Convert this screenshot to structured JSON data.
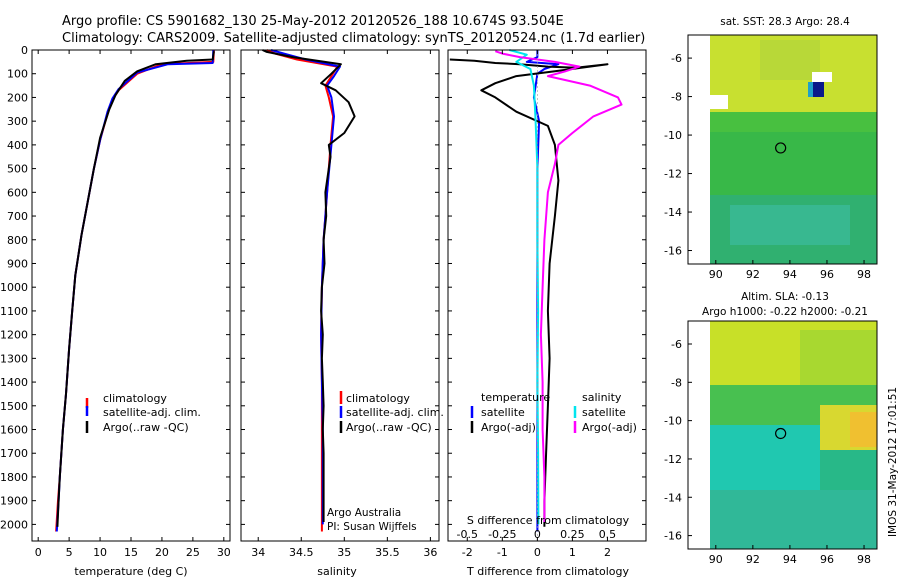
{
  "header": {
    "line1": "Argo profile: CS 5901682_130 25-May-2012 20120526_188 10.674S 93.504E",
    "line2": "Climatology: CARS2009. Satellite-adjusted climatology: synTS_20120524.nc (1.7d earlier)"
  },
  "colors": {
    "climatology": "#ff0000",
    "satellite": "#0000ff",
    "argo": "#000000",
    "sal_satellite": "#00e5ee",
    "sal_argo": "#ff00ff"
  },
  "chart_data": [
    {
      "type": "line",
      "id": "temperature",
      "xlabel": "temperature (deg C)",
      "ylabel": "",
      "xlim": [
        -1,
        31
      ],
      "ylim": [
        2070,
        0
      ],
      "xticks": [
        0,
        5,
        10,
        15,
        20,
        25,
        30
      ],
      "yticks": [
        0,
        100,
        200,
        300,
        400,
        500,
        600,
        700,
        800,
        900,
        1000,
        1100,
        1200,
        1300,
        1400,
        1500,
        1600,
        1700,
        1800,
        1900,
        2000
      ],
      "legend": [
        "climatology",
        "satellite-adj. clim.",
        "Argo(..raw -QC)"
      ],
      "legend_position": "bottom-center",
      "series": [
        {
          "name": "climatology",
          "color": "#ff0000",
          "points": [
            [
              28.4,
              0
            ],
            [
              28.3,
              50
            ],
            [
              20,
              60
            ],
            [
              16,
              100
            ],
            [
              13,
              170
            ],
            [
              12,
              210
            ],
            [
              11.3,
              260
            ],
            [
              10,
              380
            ],
            [
              9,
              500
            ],
            [
              8,
              640
            ],
            [
              7,
              780
            ],
            [
              6,
              950
            ],
            [
              5.5,
              1100
            ],
            [
              5,
              1260
            ],
            [
              4.5,
              1450
            ],
            [
              4,
              1600
            ],
            [
              3.5,
              1800
            ],
            [
              3.2,
              1900
            ],
            [
              2.9,
              2030
            ]
          ]
        },
        {
          "name": "satellite-adj. clim.",
          "color": "#0000ff",
          "points": [
            [
              28.3,
              0
            ],
            [
              28.2,
              55
            ],
            [
              21,
              60
            ],
            [
              16,
              95
            ],
            [
              13,
              165
            ],
            [
              12,
              205
            ],
            [
              11.2,
              260
            ],
            [
              10,
              380
            ],
            [
              9,
              500
            ],
            [
              8,
              640
            ],
            [
              7,
              780
            ],
            [
              6,
              950
            ],
            [
              5.5,
              1100
            ],
            [
              5,
              1260
            ],
            [
              4.5,
              1450
            ],
            [
              4,
              1600
            ],
            [
              3.5,
              1800
            ],
            [
              3.3,
              1900
            ],
            [
              3,
              2030
            ]
          ]
        },
        {
          "name": "Argo(..raw -QC)",
          "color": "#000000",
          "points": [
            [
              28.4,
              5
            ],
            [
              28.2,
              40
            ],
            [
              24,
              45
            ],
            [
              19,
              60
            ],
            [
              16,
              90
            ],
            [
              14,
              130
            ],
            [
              12.5,
              190
            ],
            [
              11.5,
              250
            ],
            [
              10,
              370
            ],
            [
              9,
              500
            ],
            [
              8,
              640
            ],
            [
              7,
              780
            ],
            [
              6,
              950
            ],
            [
              5.5,
              1100
            ],
            [
              5,
              1260
            ],
            [
              4.5,
              1450
            ],
            [
              4,
              1600
            ],
            [
              3.5,
              1800
            ],
            [
              3.3,
              1900
            ],
            [
              3.1,
              2010
            ]
          ]
        }
      ]
    },
    {
      "type": "line",
      "id": "salinity",
      "xlabel": "salinity",
      "xlim": [
        33.8,
        36.1
      ],
      "ylim": [
        2070,
        0
      ],
      "xticks": [
        34,
        34.5,
        35,
        35.5,
        36
      ],
      "legend": [
        "climatology",
        "satellite-adj. clim.",
        "Argo(..raw -QC)"
      ],
      "legend_position": "bottom-center",
      "annotation": [
        "Argo Australia",
        "PI: Susan Wijffels"
      ],
      "series": [
        {
          "name": "climatology",
          "color": "#ff0000",
          "points": [
            [
              34.1,
              0
            ],
            [
              34.2,
              15
            ],
            [
              34.45,
              40
            ],
            [
              34.92,
              70
            ],
            [
              34.85,
              110
            ],
            [
              34.78,
              150
            ],
            [
              34.82,
              200
            ],
            [
              34.87,
              280
            ],
            [
              34.84,
              400
            ],
            [
              34.8,
              600
            ],
            [
              34.76,
              800
            ],
            [
              34.74,
              1000
            ],
            [
              34.73,
              1200
            ],
            [
              34.74,
              1400
            ],
            [
              34.74,
              1600
            ],
            [
              34.74,
              1800
            ],
            [
              34.74,
              2030
            ]
          ]
        },
        {
          "name": "satellite-adj. clim.",
          "color": "#0000ff",
          "points": [
            [
              34.15,
              0
            ],
            [
              34.3,
              15
            ],
            [
              34.55,
              40
            ],
            [
              34.95,
              70
            ],
            [
              34.88,
              110
            ],
            [
              34.8,
              150
            ],
            [
              34.85,
              200
            ],
            [
              34.88,
              280
            ],
            [
              34.85,
              400
            ],
            [
              34.8,
              600
            ],
            [
              34.76,
              800
            ],
            [
              34.74,
              1000
            ],
            [
              34.73,
              1200
            ],
            [
              34.74,
              1400
            ],
            [
              34.75,
              1600
            ],
            [
              34.75,
              1800
            ],
            [
              34.75,
              2000
            ]
          ]
        },
        {
          "name": "Argo(..raw -QC)",
          "color": "#000000",
          "points": [
            [
              34.05,
              0
            ],
            [
              34.1,
              8
            ],
            [
              34.4,
              30
            ],
            [
              34.96,
              60
            ],
            [
              34.85,
              100
            ],
            [
              34.73,
              140
            ],
            [
              34.9,
              170
            ],
            [
              35.05,
              220
            ],
            [
              35.12,
              280
            ],
            [
              35.0,
              350
            ],
            [
              34.82,
              400
            ],
            [
              34.84,
              450
            ],
            [
              34.78,
              600
            ],
            [
              34.79,
              700
            ],
            [
              34.76,
              800
            ],
            [
              34.77,
              900
            ],
            [
              34.74,
              1000
            ],
            [
              34.73,
              1100
            ],
            [
              34.75,
              1200
            ],
            [
              34.74,
              1300
            ],
            [
              34.75,
              1400
            ],
            [
              34.76,
              1500
            ],
            [
              34.75,
              1600
            ],
            [
              34.76,
              1700
            ],
            [
              34.76,
              1800
            ],
            [
              34.76,
              1900
            ],
            [
              34.76,
              1990
            ]
          ]
        }
      ]
    },
    {
      "type": "line",
      "id": "difference",
      "xlabel": "T difference from climatology",
      "xlabel_top": "S difference from climatology",
      "xlim": [
        -2.55,
        3.1
      ],
      "ylim": [
        2070,
        0
      ],
      "xticks": [
        -2,
        -1,
        0,
        1,
        2
      ],
      "xticks_s": [
        "-0.5",
        "-0.25",
        "0",
        "0.25",
        "0.5"
      ],
      "legend_groups": [
        {
          "title": "temperature",
          "items": [
            "satellite",
            "Argo(-adj)"
          ]
        },
        {
          "title": "salinity",
          "items": [
            "satellite",
            "Argo(-adj)"
          ]
        }
      ],
      "legend_position": "bottom-center",
      "series": [
        {
          "name": "temperature satellite",
          "color": "#0000ff",
          "points": [
            [
              0,
              0
            ],
            [
              0,
              30
            ],
            [
              -0.3,
              50
            ],
            [
              0.6,
              60
            ],
            [
              0.2,
              80
            ],
            [
              0,
              100
            ],
            [
              -0.1,
              200
            ],
            [
              0.05,
              300
            ],
            [
              0,
              500
            ],
            [
              0,
              800
            ],
            [
              0,
              1100
            ],
            [
              0,
              1400
            ],
            [
              0,
              1700
            ],
            [
              0,
              2030
            ]
          ]
        },
        {
          "name": "temperature Argo(-adj)",
          "color": "#000000",
          "points": [
            [
              -2.5,
              40
            ],
            [
              -1.8,
              45
            ],
            [
              -1.2,
              55
            ],
            [
              -0.5,
              60
            ],
            [
              0.3,
              70
            ],
            [
              1.1,
              75
            ],
            [
              2.0,
              60
            ],
            [
              0.5,
              90
            ],
            [
              -0.6,
              110
            ],
            [
              -1.2,
              140
            ],
            [
              -1.6,
              170
            ],
            [
              -1.2,
              200
            ],
            [
              -0.6,
              260
            ],
            [
              0.3,
              320
            ],
            [
              0.5,
              400
            ],
            [
              0.6,
              550
            ],
            [
              0.5,
              700
            ],
            [
              0.35,
              900
            ],
            [
              0.3,
              1100
            ],
            [
              0.35,
              1300
            ],
            [
              0.3,
              1500
            ],
            [
              0.25,
              1700
            ],
            [
              0.2,
              1900
            ],
            [
              0.2,
              2010
            ]
          ]
        },
        {
          "name": "salinity satellite",
          "color": "#00e5ee",
          "points": [
            [
              -0.8,
              0
            ],
            [
              -0.3,
              20
            ],
            [
              -0.6,
              50
            ],
            [
              -0.2,
              80
            ],
            [
              -0.1,
              150
            ],
            [
              -0.05,
              300
            ],
            [
              0,
              500
            ],
            [
              0,
              800
            ],
            [
              0.02,
              1100
            ],
            [
              0,
              1400
            ],
            [
              0.02,
              1700
            ],
            [
              0.03,
              2000
            ]
          ]
        },
        {
          "name": "salinity Argo(-adj)",
          "color": "#ff00ff",
          "points": [
            [
              -1.2,
              5
            ],
            [
              -1.0,
              15
            ],
            [
              -0.5,
              30
            ],
            [
              0.5,
              50
            ],
            [
              1.2,
              70
            ],
            [
              0.8,
              90
            ],
            [
              0.3,
              110
            ],
            [
              1.5,
              150
            ],
            [
              2.3,
              200
            ],
            [
              2.4,
              230
            ],
            [
              1.6,
              280
            ],
            [
              1.0,
              350
            ],
            [
              0.6,
              400
            ],
            [
              0.5,
              480
            ],
            [
              0.3,
              600
            ],
            [
              0.2,
              800
            ],
            [
              0.15,
              1000
            ],
            [
              0.1,
              1200
            ],
            [
              0.15,
              1400
            ],
            [
              0.15,
              1600
            ],
            [
              0.2,
              1800
            ],
            [
              0.2,
              1990
            ]
          ]
        }
      ]
    },
    {
      "type": "heatmap",
      "id": "sst-map",
      "title": "sat. SST: 28.3  Argo: 28.4",
      "xlim": [
        88.5,
        98.7
      ],
      "ylim": [
        -16.7,
        -4.8
      ],
      "xticks": [
        90,
        92,
        94,
        96,
        98
      ],
      "yticks": [
        -6,
        -8,
        -10,
        -12,
        -14,
        -16
      ],
      "marker": [
        93.5,
        -10.67
      ]
    },
    {
      "type": "heatmap",
      "id": "sla-map",
      "title_lines": [
        "Altim. SLA: -0.13",
        "Argo h1000: -0.22  h2000: -0.21"
      ],
      "xlim": [
        88.5,
        98.7
      ],
      "ylim": [
        -16.7,
        -4.8
      ],
      "xticks": [
        90,
        92,
        94,
        96,
        98
      ],
      "yticks": [
        -6,
        -8,
        -10,
        -12,
        -14,
        -16
      ],
      "marker": [
        93.5,
        -10.67
      ]
    }
  ],
  "footer": {
    "stamp": "IMOS 31-May-2012 17:01:51"
  }
}
